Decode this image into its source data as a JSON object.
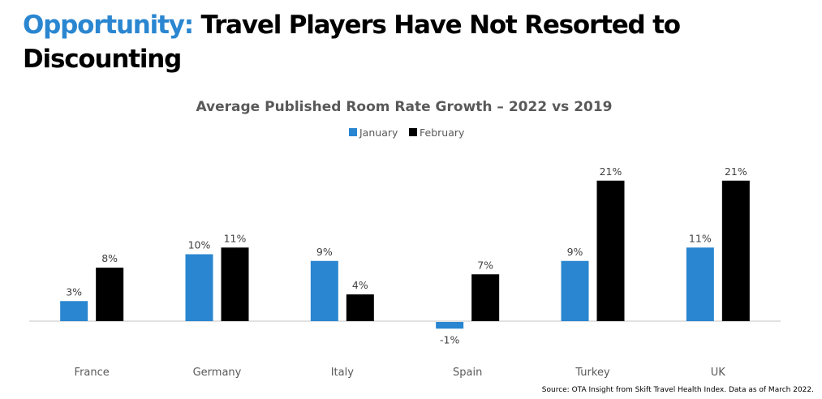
{
  "slide": {
    "title_accent": "Opportunity:",
    "title_rest_line1": " Travel Players Have Not Resorted to",
    "title_rest_line2": "Discounting",
    "source": "Source: OTA Insight from Skift Travel Health Index. Data as of March 2022."
  },
  "chart_data": {
    "type": "bar",
    "title": "Average Published Room Rate Growth – 2022 vs 2019",
    "xlabel": "",
    "ylabel": "",
    "categories": [
      "France",
      "Germany",
      "Italy",
      "Spain",
      "Turkey",
      "UK"
    ],
    "series": [
      {
        "name": "January",
        "color": "#2a86d0",
        "values": [
          3,
          10,
          9,
          -1,
          9,
          11
        ],
        "labels": [
          "3%",
          "10%",
          "9%",
          "-1%",
          "9%",
          "11%"
        ]
      },
      {
        "name": "February",
        "color": "#000000",
        "values": [
          8,
          11,
          4,
          7,
          21,
          21
        ],
        "labels": [
          "8%",
          "11%",
          "4%",
          "7%",
          "21%",
          "21%"
        ]
      }
    ],
    "unit": "%",
    "ylim": [
      -3,
      24
    ],
    "grid": false,
    "legend": "top-center",
    "axis_color": "#d9d9d9"
  }
}
